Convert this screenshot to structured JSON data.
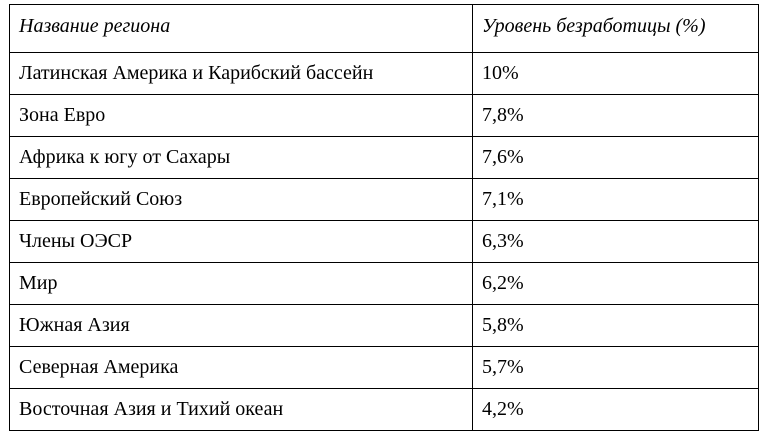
{
  "table": {
    "headers": {
      "region": "Название региона",
      "rate": "Уровень безработицы (%)"
    },
    "rows": [
      {
        "region": "Латинская Америка и Карибский бассейн",
        "rate": "10%"
      },
      {
        "region": "Зона Евро",
        "rate": "7,8%"
      },
      {
        "region": "Африка к югу от Сахары",
        "rate": "7,6%"
      },
      {
        "region": "Европейский Союз",
        "rate": "7,1%"
      },
      {
        "region": "Члены ОЭСР",
        "rate": "6,3%"
      },
      {
        "region": "Мир",
        "rate": "6,2%"
      },
      {
        "region": "Южная Азия",
        "rate": "5,8%"
      },
      {
        "region": "Северная Америка",
        "rate": "5,7%"
      },
      {
        "region": "Восточная Азия и Тихий океан",
        "rate": "4,2%"
      }
    ]
  }
}
